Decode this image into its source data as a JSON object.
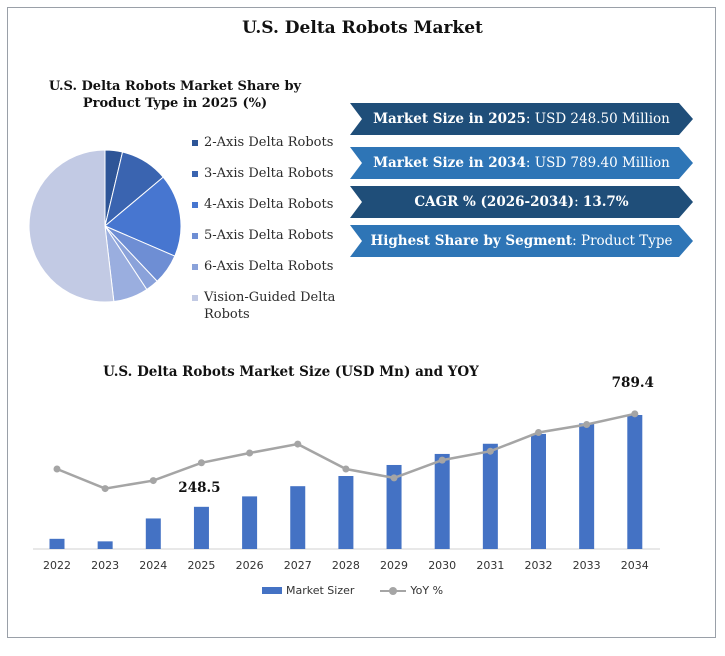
{
  "title": "U.S. Delta Robots Market",
  "pie": {
    "title": "U.S. Delta Robots Market Share by Product Type in 2025 (%)",
    "items": [
      {
        "label": "2-Axis Delta Robots",
        "value": 4,
        "color": "#2e5597"
      },
      {
        "label": "3-Axis Delta Robots",
        "value": 11,
        "color": "#3a64b0"
      },
      {
        "label": "4-Axis Delta Robots",
        "value": 19,
        "color": "#4776d0"
      },
      {
        "label": "5-Axis Delta Robots",
        "value": 7,
        "color": "#6e8ed4"
      },
      {
        "label": "6-Axis Delta Robots",
        "value": 3,
        "color": "#8aa2da"
      },
      {
        "label": "Vision-Guided Delta Robots",
        "value": 56,
        "color": "#c2cae4"
      }
    ],
    "extra_slice_value": 8,
    "extra_slice_color": "#9aaedf"
  },
  "banners": [
    {
      "key": "Market Size in 2025",
      "value": "USD 248.50 Million",
      "color": "#1f4e79"
    },
    {
      "key": "Market Size in 2034",
      "value": "USD 789.40 Million",
      "color": "#2e75b6"
    },
    {
      "key": "CAGR % (2026-2034)",
      "value": "13.7%",
      "color": "#1f4e79"
    },
    {
      "key": "Highest Share by Segment",
      "value": "Product Type",
      "color": "#2e75b6"
    }
  ],
  "chart_data": {
    "type": "bar",
    "title": "U.S. Delta Robots Market Size (USD Mn) and YOY",
    "categories": [
      "2022",
      "2023",
      "2024",
      "2025",
      "2026",
      "2027",
      "2028",
      "2029",
      "2030",
      "2031",
      "2032",
      "2033",
      "2034"
    ],
    "series": [
      {
        "name": "Market Sizer",
        "type": "bar",
        "color": "#4472c4",
        "values": [
          60,
          45,
          180,
          248.5,
          310,
          370,
          430,
          495,
          560,
          620,
          678,
          740,
          789.4
        ]
      },
      {
        "name": "YoY %",
        "type": "line",
        "color": "#a5a5a5",
        "values": [
          12.5,
          10.3,
          11.2,
          13.2,
          14.3,
          15.3,
          12.5,
          11.5,
          13.5,
          14.5,
          16.6,
          17.5,
          18.7
        ]
      }
    ],
    "data_labels": [
      {
        "index": 3,
        "text": "248.5"
      },
      {
        "index": 12,
        "text": "789.4"
      }
    ]
  }
}
